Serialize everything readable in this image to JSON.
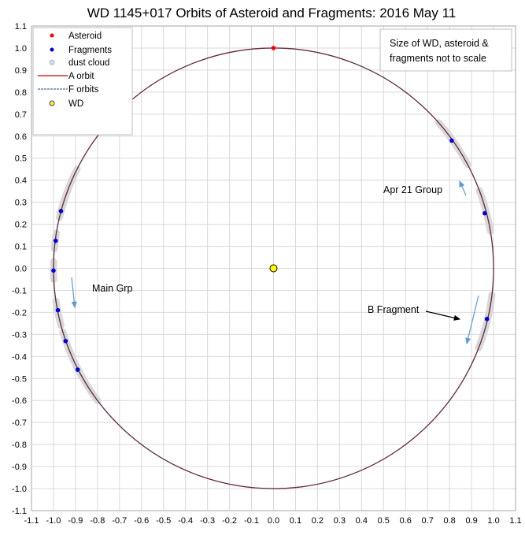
{
  "chart_data": {
    "type": "scatter",
    "title": "WD 1145+017 Orbits of Asteroid and Fragments: 2016 May 11",
    "xlabel": "",
    "ylabel": "",
    "xlim": [
      -1.1,
      1.1
    ],
    "ylim": [
      -1.1,
      1.1
    ],
    "grid": true,
    "legend_position": "top-left",
    "x_ticks": [
      "-1.1",
      "-1.0",
      "-0.9",
      "-0.8",
      "-0.7",
      "-0.6",
      "-0.5",
      "-0.4",
      "-0.3",
      "-0.2",
      "-0.1",
      "0.0",
      "0.1",
      "0.2",
      "0.3",
      "0.4",
      "0.5",
      "0.6",
      "0.7",
      "0.8",
      "0.9",
      "1.0",
      "1.1"
    ],
    "y_ticks": [
      "1.1",
      "1.0",
      "0.9",
      "0.8",
      "0.7",
      "0.6",
      "0.5",
      "0.4",
      "0.3",
      "0.2",
      "0.1",
      "0.0",
      "-0.1",
      "-0.2",
      "-0.3",
      "-0.4",
      "-0.5",
      "-0.6",
      "-0.7",
      "-0.8",
      "-0.9",
      "-1.0",
      "-1.1"
    ],
    "legend": [
      "Asteroid",
      "Fragments",
      "dust cloud",
      "A orbit",
      "F orbits",
      "WD"
    ],
    "colors": {
      "asteroid": "#ff0000",
      "fragments": "#0000dd",
      "dust": "#d9d9d9",
      "a_orbit": "#c00000",
      "f_orbits": "#1f4e79",
      "wd": "#ffff00",
      "grid": "#d9d9d9"
    },
    "asteroid": [
      {
        "x": 0.0,
        "y": 1.0
      }
    ],
    "wd": [
      {
        "x": 0.0,
        "y": 0.0
      }
    ],
    "orbit_radius": 1.0,
    "fragments": [
      {
        "x": 0.81,
        "y": 0.58
      },
      {
        "x": 0.96,
        "y": 0.25
      },
      {
        "x": 0.97,
        "y": -0.23
      },
      {
        "x": -0.966,
        "y": 0.26
      },
      {
        "x": -0.99,
        "y": 0.125
      },
      {
        "x": -1.0,
        "y": -0.01
      },
      {
        "x": -0.98,
        "y": -0.19
      },
      {
        "x": -0.945,
        "y": -0.33
      },
      {
        "x": -0.89,
        "y": -0.46
      }
    ],
    "dust_cloud_arcs": [
      [
        [
          0.75,
          0.66
        ],
        [
          0.88,
          0.47
        ]
      ],
      [
        [
          0.93,
          0.35
        ],
        [
          0.99,
          0.17
        ]
      ],
      [
        [
          0.99,
          -0.12
        ],
        [
          0.93,
          -0.36
        ]
      ],
      [
        [
          -0.89,
          0.45
        ],
        [
          -0.97,
          0.23
        ]
      ],
      [
        [
          -0.99,
          0.16
        ],
        [
          -1.0,
          0.09
        ]
      ],
      [
        [
          -1.0,
          0.03
        ],
        [
          -1.0,
          -0.05
        ]
      ],
      [
        [
          -0.99,
          -0.15
        ],
        [
          -0.97,
          -0.26
        ]
      ],
      [
        [
          -0.96,
          -0.29
        ],
        [
          -0.8,
          -0.6
        ]
      ]
    ],
    "annotations": {
      "note": [
        "Size of WD, asteroid &",
        "fragments not to scale"
      ],
      "apr21": "Apr 21 Group",
      "main": "Main Grp",
      "bfrag": "B Fragment"
    }
  }
}
